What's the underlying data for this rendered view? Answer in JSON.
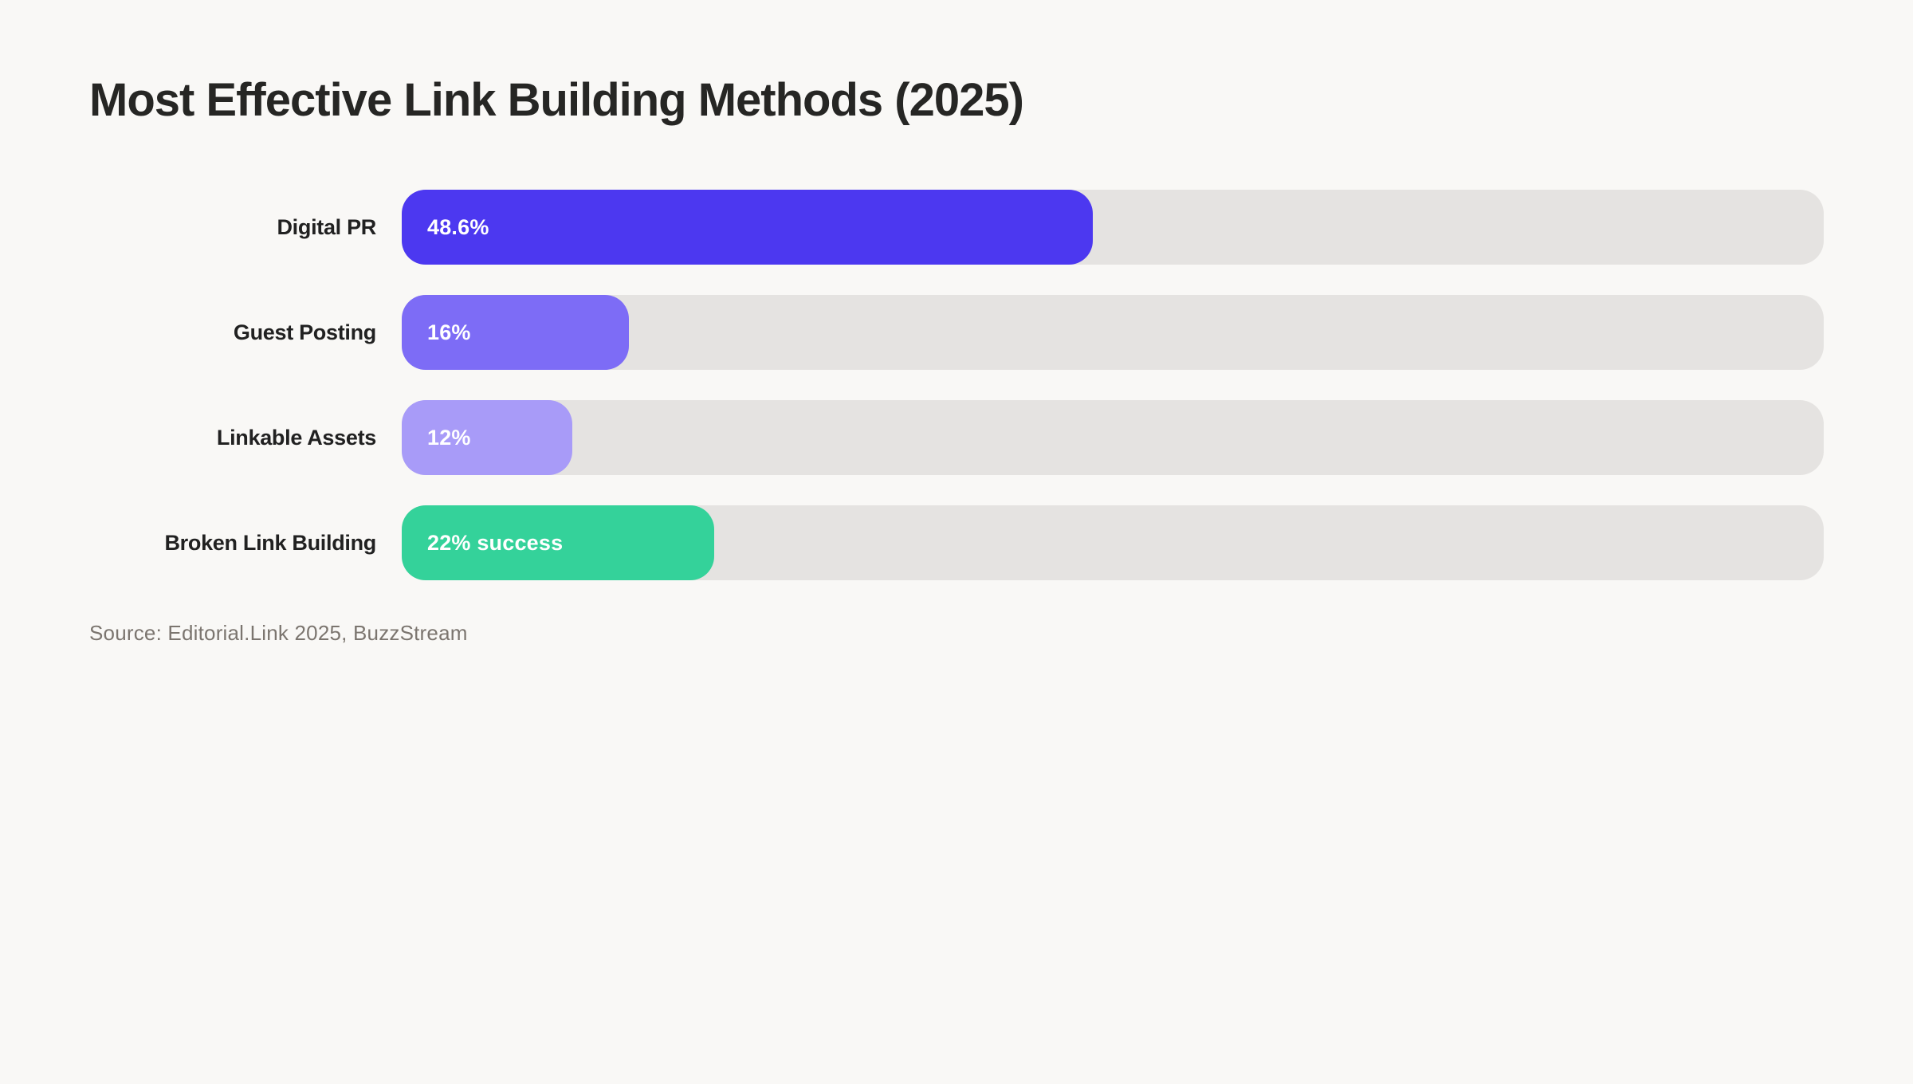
{
  "page": {
    "background_color": "#f9f8f6",
    "track_color": "#e5e3e1",
    "text_color": "#262624",
    "source_text_color": "#7b756f"
  },
  "chart_data": {
    "type": "bar",
    "orientation": "horizontal",
    "title": "Most Effective Link Building Methods (2025)",
    "source": "Source: Editorial.Link 2025, BuzzStream",
    "xlabel": "",
    "ylabel": "",
    "xlim": [
      0,
      100
    ],
    "grid": false,
    "legend": false,
    "categories": [
      "Digital PR",
      "Guest Posting",
      "Linkable Assets",
      "Broken Link Building"
    ],
    "values": [
      48.6,
      16,
      12,
      22
    ],
    "bars": [
      {
        "label": "Digital PR",
        "value": 48.6,
        "value_label": "48.6%",
        "color": "#4c38f0"
      },
      {
        "label": "Guest Posting",
        "value": 16,
        "value_label": "16%",
        "color": "#7d6cf6"
      },
      {
        "label": "Linkable Assets",
        "value": 12,
        "value_label": "12%",
        "color": "#a89bf8"
      },
      {
        "label": "Broken Link Building",
        "value": 22,
        "value_label": "22% success",
        "color": "#34d29a"
      }
    ]
  }
}
